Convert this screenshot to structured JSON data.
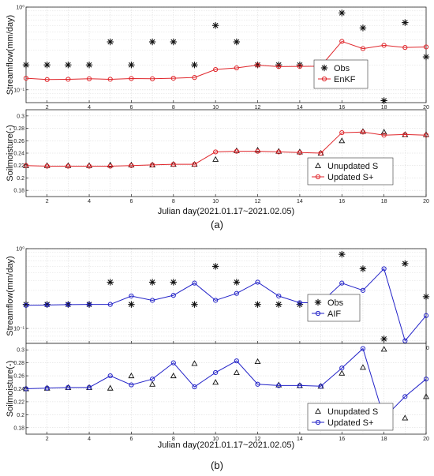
{
  "figure": {
    "panel_labels": [
      "(a)",
      "(b)"
    ]
  },
  "colors": {
    "enkf": "#e0262b",
    "aif": "#2323c8",
    "obs": "#111111",
    "grid": "#d4d4d4",
    "axis": "#222222"
  },
  "chart_data": [
    {
      "type": "line",
      "title": "",
      "xlabel": "",
      "ylabel": "Streamflow(mm/day)",
      "yscale": "log",
      "xlim": [
        1,
        20
      ],
      "ylim": [
        0.07,
        1.0
      ],
      "xticks": [
        2,
        4,
        6,
        8,
        10,
        12,
        14,
        16,
        18,
        20
      ],
      "yticks": [
        {
          "value": 0.1,
          "label": "10⁻¹"
        },
        {
          "value": 1.0,
          "label": "10⁰"
        }
      ],
      "grid": true,
      "legend_position": "lower-right",
      "series": [
        {
          "name": "Obs",
          "marker": "asterisk",
          "line": false,
          "x": [
            1,
            2,
            3,
            4,
            5,
            6,
            7,
            8,
            9,
            10,
            11,
            12,
            13,
            14,
            15,
            16,
            17,
            18,
            19,
            20
          ],
          "values": [
            0.2,
            0.2,
            0.2,
            0.2,
            0.38,
            0.2,
            0.38,
            0.38,
            0.2,
            0.6,
            0.38,
            0.2,
            0.2,
            0.2,
            0.2,
            0.85,
            0.56,
            0.074,
            0.65,
            0.25
          ]
        },
        {
          "name": "EnKF",
          "marker": "circle",
          "line": true,
          "x": [
            1,
            2,
            3,
            4,
            5,
            6,
            7,
            8,
            9,
            10,
            11,
            12,
            13,
            14,
            15,
            16,
            17,
            18,
            19,
            20
          ],
          "values": [
            0.138,
            0.133,
            0.134,
            0.136,
            0.134,
            0.137,
            0.136,
            0.138,
            0.141,
            0.176,
            0.184,
            0.199,
            0.191,
            0.192,
            0.193,
            0.385,
            0.315,
            0.345,
            0.325,
            0.33
          ]
        }
      ]
    },
    {
      "type": "line",
      "title": "",
      "xlabel": "Julian day(2021.01.17~2021.02.05)",
      "ylabel": "Soilmoisture(-)",
      "xlim": [
        1,
        20
      ],
      "ylim": [
        0.17,
        0.31
      ],
      "xticks": [
        2,
        4,
        6,
        8,
        10,
        12,
        14,
        16,
        18,
        20
      ],
      "yticks": [
        0.18,
        0.2,
        0.22,
        0.24,
        0.26,
        0.28,
        0.3
      ],
      "grid": true,
      "legend_position": "lower-right",
      "series": [
        {
          "name": "Unupdated S",
          "marker": "triangle",
          "line": false,
          "x": [
            1,
            2,
            3,
            4,
            5,
            6,
            7,
            8,
            9,
            10,
            11,
            12,
            13,
            14,
            15,
            16,
            17,
            18,
            19,
            20
          ],
          "values": [
            0.22,
            0.22,
            0.22,
            0.22,
            0.221,
            0.221,
            0.221,
            0.222,
            0.222,
            0.23,
            0.244,
            0.245,
            0.243,
            0.242,
            0.24,
            0.26,
            0.275,
            0.274,
            0.27,
            0.27
          ]
        },
        {
          "name": "Updated S+",
          "marker": "circle",
          "line": true,
          "x": [
            1,
            2,
            3,
            4,
            5,
            6,
            7,
            8,
            9,
            10,
            11,
            12,
            13,
            14,
            15,
            16,
            17,
            18,
            19,
            20
          ],
          "values": [
            0.22,
            0.219,
            0.219,
            0.219,
            0.219,
            0.22,
            0.221,
            0.222,
            0.222,
            0.242,
            0.243,
            0.243,
            0.242,
            0.241,
            0.24,
            0.273,
            0.274,
            0.269,
            0.27,
            0.269
          ]
        }
      ]
    },
    {
      "type": "line",
      "title": "",
      "xlabel": "",
      "ylabel": "Streamflow(mm/day)",
      "yscale": "log",
      "xlim": [
        1,
        20
      ],
      "ylim": [
        0.065,
        1.0
      ],
      "xticks": [
        2,
        4,
        6,
        8,
        10,
        12,
        14,
        16,
        18,
        20
      ],
      "yticks": [
        {
          "value": 0.1,
          "label": "10⁻¹"
        },
        {
          "value": 1.0,
          "label": "10⁰"
        }
      ],
      "grid": true,
      "legend_position": "lower-right",
      "series": [
        {
          "name": "Obs",
          "marker": "asterisk",
          "line": false,
          "x": [
            1,
            2,
            3,
            4,
            5,
            6,
            7,
            8,
            9,
            10,
            11,
            12,
            13,
            14,
            15,
            16,
            17,
            18,
            19,
            20
          ],
          "values": [
            0.2,
            0.2,
            0.2,
            0.2,
            0.38,
            0.2,
            0.38,
            0.38,
            0.2,
            0.6,
            0.38,
            0.2,
            0.2,
            0.2,
            0.2,
            0.85,
            0.56,
            0.074,
            0.65,
            0.25
          ]
        },
        {
          "name": "AIF",
          "marker": "circle",
          "line": true,
          "x": [
            1,
            2,
            3,
            4,
            5,
            6,
            7,
            8,
            9,
            10,
            11,
            12,
            13,
            14,
            15,
            16,
            17,
            18,
            19,
            20
          ],
          "values": [
            0.195,
            0.197,
            0.199,
            0.2,
            0.2,
            0.255,
            0.225,
            0.26,
            0.37,
            0.225,
            0.275,
            0.38,
            0.255,
            0.21,
            0.21,
            0.37,
            0.3,
            0.56,
            0.07,
            0.145
          ]
        }
      ]
    },
    {
      "type": "line",
      "title": "",
      "xlabel": "Julian day(2021.01.17~2021.02.05)",
      "ylabel": "Soilmoisture(-)",
      "xlim": [
        1,
        20
      ],
      "ylim": [
        0.17,
        0.31
      ],
      "xticks": [
        2,
        4,
        6,
        8,
        10,
        12,
        14,
        16,
        18,
        20
      ],
      "yticks": [
        0.18,
        0.2,
        0.22,
        0.24,
        0.26,
        0.28,
        0.3
      ],
      "grid": true,
      "legend_position": "lower-right",
      "series": [
        {
          "name": "Unupdated S",
          "marker": "triangle",
          "line": false,
          "x": [
            1,
            2,
            3,
            4,
            5,
            6,
            7,
            8,
            9,
            10,
            11,
            12,
            13,
            14,
            15,
            16,
            17,
            18,
            19,
            20
          ],
          "values": [
            0.24,
            0.241,
            0.242,
            0.242,
            0.241,
            0.26,
            0.247,
            0.26,
            0.279,
            0.25,
            0.265,
            0.282,
            0.246,
            0.245,
            0.244,
            0.264,
            0.273,
            0.301,
            0.195,
            0.228
          ]
        },
        {
          "name": "Updated S+",
          "marker": "circle",
          "line": true,
          "x": [
            1,
            2,
            3,
            4,
            5,
            6,
            7,
            8,
            9,
            10,
            11,
            12,
            13,
            14,
            15,
            16,
            17,
            18,
            19,
            20
          ],
          "values": [
            0.24,
            0.241,
            0.242,
            0.242,
            0.26,
            0.246,
            0.255,
            0.28,
            0.243,
            0.265,
            0.283,
            0.247,
            0.245,
            0.245,
            0.244,
            0.272,
            0.302,
            0.195,
            0.228,
            0.255
          ]
        }
      ]
    }
  ]
}
